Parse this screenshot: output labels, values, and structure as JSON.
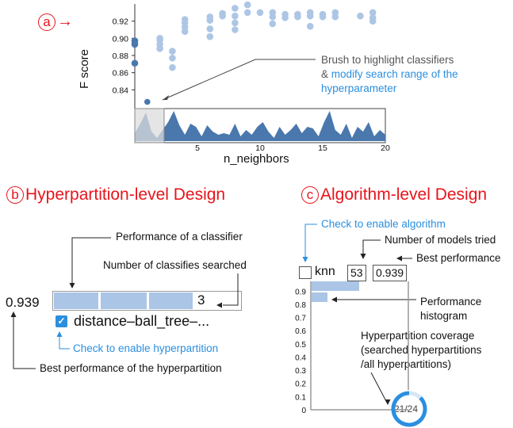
{
  "panel_a": {
    "label": "a",
    "arrow": "→",
    "y_axis_label": "F score",
    "x_axis_label": "n_neighbors",
    "y_ticks": [
      "0.92",
      "0.90",
      "0.88",
      "0.86",
      "0.84"
    ],
    "x_ticks": [
      "5",
      "10",
      "15",
      "20"
    ],
    "annotation_line1": "Brush to highlight classifiers",
    "annotation_amp": "& ",
    "annotation_blue": "modify search range of the hyperparameter",
    "annotation_blue_line1": "modify search range of the",
    "annotation_blue_line2": "hyperparameter"
  },
  "panel_b": {
    "label": "b",
    "title": "Hyperpartition-level Design",
    "performance_annotation": "Performance of a classifier",
    "count_annotation": "Number of classifies searched",
    "best_value": "0.939",
    "count_value": "3",
    "checkbox_checked": true,
    "hyperpartition_name": "distance–ball_tree–...",
    "check_annotation": "Check to enable hyperpartition",
    "best_annotation": "Best performance of the hyperpartition",
    "bar_color": "#aac5e6"
  },
  "panel_c": {
    "label": "c",
    "title": "Algorithm-level Design",
    "check_annotation": "Check to enable algorithm",
    "models_annotation": "Number of models tried",
    "best_annotation": "Best performance",
    "algorithm_name": "knn",
    "models_value": "53",
    "best_value": "0.939",
    "y_ticks": [
      "0.9",
      "0.8",
      "0.7",
      "0.6",
      "0.5",
      "0.4",
      "0.3",
      "0.2",
      "0.1",
      "0"
    ],
    "histogram_annotation_line1": "Performance",
    "histogram_annotation_line2": "histogram",
    "coverage_line1": "Hyperpartition coverage",
    "coverage_line2": "(searched hyperpartitions",
    "coverage_line3": "/all hyperpartitions)",
    "coverage_text": "21/24",
    "coverage_fraction": 0.875,
    "histogram_values": [
      0.75,
      0.25
    ]
  },
  "chart_data": {
    "type": "scatter",
    "xlabel": "n_neighbors",
    "ylabel": "F score",
    "xlim": [
      0,
      20
    ],
    "ylim": [
      0.82,
      0.94
    ],
    "points": [
      {
        "x": 0,
        "y": 0.897
      },
      {
        "x": 0,
        "y": 0.893
      },
      {
        "x": 0,
        "y": 0.871
      },
      {
        "x": 1,
        "y": 0.826
      },
      {
        "x": 2,
        "y": 0.9
      },
      {
        "x": 2,
        "y": 0.898
      },
      {
        "x": 2,
        "y": 0.893
      },
      {
        "x": 2,
        "y": 0.888
      },
      {
        "x": 3,
        "y": 0.885
      },
      {
        "x": 3,
        "y": 0.877
      },
      {
        "x": 3,
        "y": 0.866
      },
      {
        "x": 4,
        "y": 0.922
      },
      {
        "x": 4,
        "y": 0.918
      },
      {
        "x": 4,
        "y": 0.913
      },
      {
        "x": 4,
        "y": 0.908
      },
      {
        "x": 6,
        "y": 0.925
      },
      {
        "x": 6,
        "y": 0.921
      },
      {
        "x": 6,
        "y": 0.911
      },
      {
        "x": 6,
        "y": 0.902
      },
      {
        "x": 7,
        "y": 0.929
      },
      {
        "x": 7,
        "y": 0.926
      },
      {
        "x": 8,
        "y": 0.935
      },
      {
        "x": 8,
        "y": 0.926
      },
      {
        "x": 8,
        "y": 0.918
      },
      {
        "x": 8,
        "y": 0.91
      },
      {
        "x": 9,
        "y": 0.939
      },
      {
        "x": 9,
        "y": 0.93
      },
      {
        "x": 10,
        "y": 0.93
      },
      {
        "x": 11,
        "y": 0.93
      },
      {
        "x": 11,
        "y": 0.925
      },
      {
        "x": 11,
        "y": 0.917
      },
      {
        "x": 12,
        "y": 0.928
      },
      {
        "x": 12,
        "y": 0.924
      },
      {
        "x": 13,
        "y": 0.928
      },
      {
        "x": 13,
        "y": 0.925
      },
      {
        "x": 14,
        "y": 0.93
      },
      {
        "x": 14,
        "y": 0.926
      },
      {
        "x": 14,
        "y": 0.914
      },
      {
        "x": 15,
        "y": 0.928
      },
      {
        "x": 15,
        "y": 0.925
      },
      {
        "x": 16,
        "y": 0.93
      },
      {
        "x": 16,
        "y": 0.925
      },
      {
        "x": 18,
        "y": 0.926
      },
      {
        "x": 19,
        "y": 0.93
      },
      {
        "x": 19,
        "y": 0.924
      },
      {
        "x": 19,
        "y": 0.92
      }
    ],
    "density": [
      0.25,
      0.55,
      0.9,
      0.3,
      0.1,
      0.35,
      0.6,
      0.95,
      0.5,
      0.2,
      0.55,
      0.45,
      0.15,
      0.5,
      0.3,
      0.2,
      0.25,
      0.2,
      0.55,
      0.15,
      0.35,
      0.2,
      0.45,
      0.6,
      0.3,
      0.1,
      0.45,
      0.2,
      0.35,
      0.55,
      0.25,
      0.45,
      0.4,
      0.15,
      0.6,
      0.95,
      0.35,
      0.2,
      0.55,
      0.1,
      0.45,
      0.3,
      0.6,
      0.15,
      0.35,
      0.2
    ]
  }
}
